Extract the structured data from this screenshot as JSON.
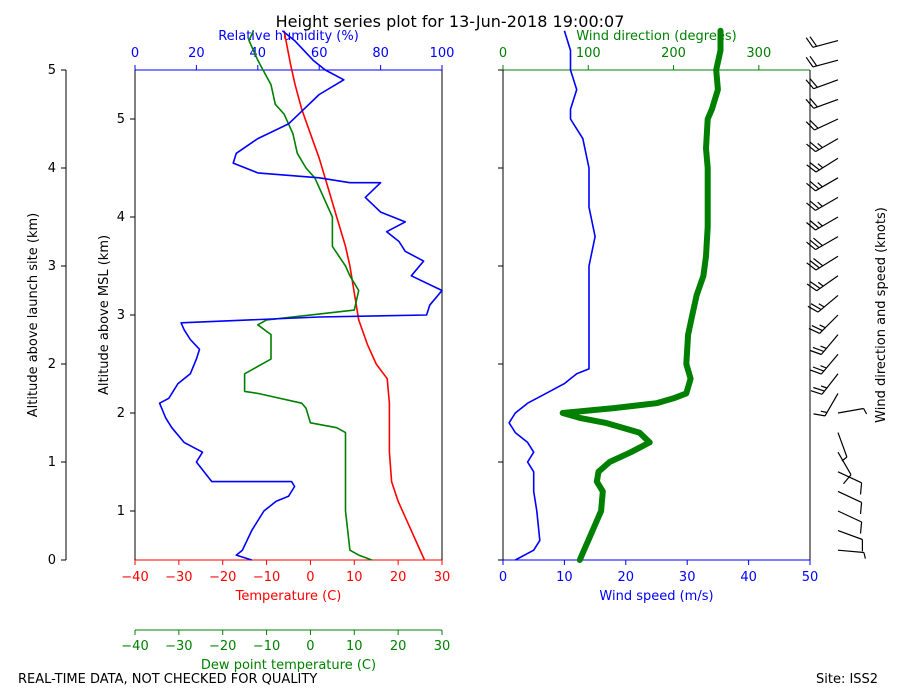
{
  "title": "Height series plot for 13-Jun-2018 19:00:07",
  "footer_left": "REAL-TIME DATA, NOT CHECKED FOR QUALITY",
  "footer_right": "Site: ISS2",
  "colors": {
    "temp": "#ff0000",
    "dew": "#008000",
    "rh": "#0000ff",
    "wdir": "#008000",
    "wspd": "#0000ff",
    "barb": "#000000"
  },
  "chart_data": [
    {
      "type": "line",
      "name": "thermo-panel",
      "axes": {
        "launch_altitude": {
          "label": "Altitude above launch site (km)",
          "range": [
            0,
            5
          ],
          "ticks": [
            0,
            1,
            2,
            3,
            4,
            5
          ]
        },
        "msl_altitude": {
          "label": "Altitude above MSL (km)",
          "range": [
            0.5,
            5.5
          ],
          "ticks": [
            1,
            2,
            3,
            4,
            5
          ],
          "tick_labels": [
            "1",
            "2",
            "3",
            "4",
            "5"
          ]
        },
        "temperature": {
          "label": "Temperature (C)",
          "range": [
            -40,
            30
          ],
          "ticks": [
            -40,
            -30,
            -20,
            -10,
            0,
            10,
            20,
            30
          ]
        },
        "relative_humidity": {
          "label": "Relative humidity (%)",
          "range": [
            0,
            100
          ],
          "ticks": [
            0,
            20,
            40,
            60,
            80,
            100
          ]
        },
        "dew_point": {
          "label": "Dew point temperature (C)",
          "range": [
            -40,
            30
          ],
          "ticks": [
            -40,
            -30,
            -20,
            -10,
            0,
            10,
            20,
            30
          ]
        }
      },
      "series": [
        {
          "name": "Temperature",
          "x_axis": "temperature",
          "points": [
            [
              26,
              0
            ],
            [
              24,
              0.2
            ],
            [
              22,
              0.4
            ],
            [
              20,
              0.6
            ],
            [
              18.5,
              0.8
            ],
            [
              18,
              1.1
            ],
            [
              18,
              1.4
            ],
            [
              18,
              1.6
            ],
            [
              17.5,
              1.85
            ],
            [
              15,
              2.0
            ],
            [
              13,
              2.2
            ],
            [
              11,
              2.45
            ],
            [
              9,
              3.0
            ],
            [
              8,
              3.2
            ],
            [
              6,
              3.5
            ],
            [
              4,
              3.8
            ],
            [
              2,
              4.1
            ],
            [
              0,
              4.35
            ],
            [
              -2,
              4.6
            ],
            [
              -3.5,
              4.85
            ],
            [
              -4.5,
              5.05
            ],
            [
              -6,
              5.4
            ]
          ]
        },
        {
          "name": "Dew point",
          "x_axis": "dew_point",
          "points": [
            [
              14,
              0
            ],
            [
              11,
              0.05
            ],
            [
              9,
              0.1
            ],
            [
              8,
              0.5
            ],
            [
              8,
              1.0
            ],
            [
              8,
              1.3
            ],
            [
              6,
              1.35
            ],
            [
              0,
              1.4
            ],
            [
              -1,
              1.55
            ],
            [
              -2,
              1.6
            ],
            [
              -12,
              1.7
            ],
            [
              -15,
              1.72
            ],
            [
              -15,
              1.9
            ],
            [
              -9,
              2.05
            ],
            [
              -9,
              2.3
            ],
            [
              -12,
              2.4
            ],
            [
              -10,
              2.45
            ],
            [
              10,
              2.55
            ],
            [
              11,
              2.75
            ],
            [
              9,
              2.9
            ],
            [
              8,
              3.0
            ],
            [
              5,
              3.2
            ],
            [
              5,
              3.5
            ],
            [
              1,
              3.9
            ],
            [
              -1,
              4.0
            ],
            [
              -3,
              4.15
            ],
            [
              -4,
              4.35
            ],
            [
              -6,
              4.55
            ],
            [
              -8,
              4.65
            ],
            [
              -9,
              4.85
            ],
            [
              -12,
              5.1
            ],
            [
              -14,
              5.3
            ],
            [
              -13,
              5.4
            ]
          ]
        },
        {
          "name": "Relative humidity",
          "x_axis": "relative_humidity",
          "points": [
            [
              38,
              0
            ],
            [
              33,
              0.05
            ],
            [
              35,
              0.1
            ],
            [
              38,
              0.3
            ],
            [
              42,
              0.5
            ],
            [
              46,
              0.6
            ],
            [
              50,
              0.65
            ],
            [
              52,
              0.75
            ],
            [
              51,
              0.8
            ],
            [
              25,
              0.8
            ],
            [
              23,
              0.88
            ],
            [
              20,
              1.0
            ],
            [
              22,
              1.1
            ],
            [
              16,
              1.2
            ],
            [
              12,
              1.35
            ],
            [
              10,
              1.45
            ],
            [
              8,
              1.6
            ],
            [
              11,
              1.65
            ],
            [
              14,
              1.8
            ],
            [
              18,
              1.9
            ],
            [
              20,
              2.05
            ],
            [
              21,
              2.15
            ],
            [
              18,
              2.25
            ],
            [
              16,
              2.35
            ],
            [
              15,
              2.42
            ],
            [
              60,
              2.48
            ],
            [
              95,
              2.5
            ],
            [
              96,
              2.6
            ],
            [
              100,
              2.75
            ],
            [
              90,
              2.9
            ],
            [
              94,
              3.05
            ],
            [
              88,
              3.15
            ],
            [
              86,
              3.25
            ],
            [
              82,
              3.35
            ],
            [
              88,
              3.45
            ],
            [
              80,
              3.55
            ],
            [
              75,
              3.7
            ],
            [
              80,
              3.85
            ],
            [
              70,
              3.85
            ],
            [
              60,
              3.9
            ],
            [
              40,
              3.95
            ],
            [
              32,
              4.05
            ],
            [
              33,
              4.15
            ],
            [
              40,
              4.3
            ],
            [
              50,
              4.45
            ],
            [
              55,
              4.6
            ],
            [
              60,
              4.75
            ],
            [
              68,
              4.9
            ],
            [
              62,
              5.0
            ],
            [
              58,
              5.1
            ],
            [
              52,
              5.3
            ],
            [
              48,
              5.4
            ]
          ]
        }
      ]
    },
    {
      "type": "line",
      "name": "wind-panel",
      "axes": {
        "wind_speed": {
          "label": "Wind speed (m/s)",
          "range": [
            0,
            50
          ],
          "ticks": [
            0,
            10,
            20,
            30,
            40,
            50
          ]
        },
        "wind_direction": {
          "label": "Wind direction (degrees)",
          "range": [
            0,
            360
          ],
          "ticks": [
            0,
            100,
            200,
            300
          ]
        },
        "altitude": {
          "range": [
            0,
            5
          ]
        }
      },
      "series": [
        {
          "name": "Wind speed",
          "x_axis": "wind_speed",
          "points": [
            [
              2,
              0
            ],
            [
              5,
              0.1
            ],
            [
              6,
              0.2
            ],
            [
              5.5,
              0.5
            ],
            [
              5,
              0.7
            ],
            [
              5,
              0.9
            ],
            [
              4,
              1.0
            ],
            [
              5,
              1.1
            ],
            [
              4,
              1.2
            ],
            [
              2,
              1.3
            ],
            [
              1,
              1.4
            ],
            [
              2,
              1.5
            ],
            [
              4,
              1.6
            ],
            [
              7,
              1.7
            ],
            [
              10,
              1.8
            ],
            [
              12,
              1.9
            ],
            [
              14,
              1.95
            ],
            [
              14,
              2.2
            ],
            [
              14,
              2.5
            ],
            [
              14,
              3.0
            ],
            [
              15,
              3.3
            ],
            [
              14,
              3.6
            ],
            [
              14,
              4.0
            ],
            [
              13,
              4.3
            ],
            [
              11,
              4.5
            ],
            [
              11,
              4.6
            ],
            [
              12,
              4.8
            ],
            [
              11,
              5.0
            ],
            [
              11,
              5.2
            ],
            [
              10,
              5.4
            ]
          ]
        },
        {
          "name": "Wind direction",
          "x_axis": "wind_direction",
          "points": [
            [
              90,
              0
            ],
            [
              95,
              0.1
            ],
            [
              100,
              0.2
            ],
            [
              110,
              0.4
            ],
            [
              115,
              0.5
            ],
            [
              117,
              0.7
            ],
            [
              110,
              0.8
            ],
            [
              112,
              0.9
            ],
            [
              125,
              1.0
            ],
            [
              150,
              1.1
            ],
            [
              172,
              1.2
            ],
            [
              160,
              1.3
            ],
            [
              120,
              1.4
            ],
            [
              90,
              1.45
            ],
            [
              70,
              1.5
            ],
            [
              130,
              1.55
            ],
            [
              180,
              1.6
            ],
            [
              200,
              1.65
            ],
            [
              215,
              1.7
            ],
            [
              220,
              1.85
            ],
            [
              215,
              2.0
            ],
            [
              217,
              2.3
            ],
            [
              222,
              2.5
            ],
            [
              227,
              2.7
            ],
            [
              235,
              2.9
            ],
            [
              238,
              3.1
            ],
            [
              240,
              3.4
            ],
            [
              240,
              3.7
            ],
            [
              240,
              4.0
            ],
            [
              238,
              4.2
            ],
            [
              240,
              4.5
            ],
            [
              245,
              4.6
            ],
            [
              252,
              4.8
            ],
            [
              250,
              5.0
            ],
            [
              255,
              5.2
            ],
            [
              255,
              5.4
            ]
          ]
        }
      ]
    },
    {
      "type": "barbs",
      "name": "wind-barbs",
      "axis_label": "Wind direction and speed (knots)",
      "barbs": [
        {
          "alt": 0.1,
          "dir": 95,
          "kt": 5
        },
        {
          "alt": 0.3,
          "dir": 110,
          "kt": 10
        },
        {
          "alt": 0.5,
          "dir": 115,
          "kt": 10
        },
        {
          "alt": 0.7,
          "dir": 115,
          "kt": 10
        },
        {
          "alt": 0.9,
          "dir": 115,
          "kt": 10
        },
        {
          "alt": 1.1,
          "dir": 150,
          "kt": 10
        },
        {
          "alt": 1.3,
          "dir": 160,
          "kt": 5
        },
        {
          "alt": 1.5,
          "dir": 80,
          "kt": 5
        },
        {
          "alt": 1.7,
          "dir": 210,
          "kt": 15
        },
        {
          "alt": 1.9,
          "dir": 218,
          "kt": 25
        },
        {
          "alt": 2.1,
          "dir": 220,
          "kt": 25
        },
        {
          "alt": 2.3,
          "dir": 220,
          "kt": 25
        },
        {
          "alt": 2.5,
          "dir": 225,
          "kt": 25
        },
        {
          "alt": 2.7,
          "dir": 230,
          "kt": 25
        },
        {
          "alt": 2.9,
          "dir": 235,
          "kt": 25
        },
        {
          "alt": 3.1,
          "dir": 238,
          "kt": 30
        },
        {
          "alt": 3.3,
          "dir": 240,
          "kt": 30
        },
        {
          "alt": 3.5,
          "dir": 240,
          "kt": 25
        },
        {
          "alt": 3.7,
          "dir": 240,
          "kt": 25
        },
        {
          "alt": 3.9,
          "dir": 240,
          "kt": 25
        },
        {
          "alt": 4.1,
          "dir": 238,
          "kt": 25
        },
        {
          "alt": 4.3,
          "dir": 240,
          "kt": 25
        },
        {
          "alt": 4.5,
          "dir": 245,
          "kt": 20
        },
        {
          "alt": 4.7,
          "dir": 250,
          "kt": 20
        },
        {
          "alt": 4.9,
          "dir": 250,
          "kt": 20
        },
        {
          "alt": 5.1,
          "dir": 255,
          "kt": 20
        },
        {
          "alt": 5.3,
          "dir": 255,
          "kt": 20
        }
      ]
    }
  ]
}
